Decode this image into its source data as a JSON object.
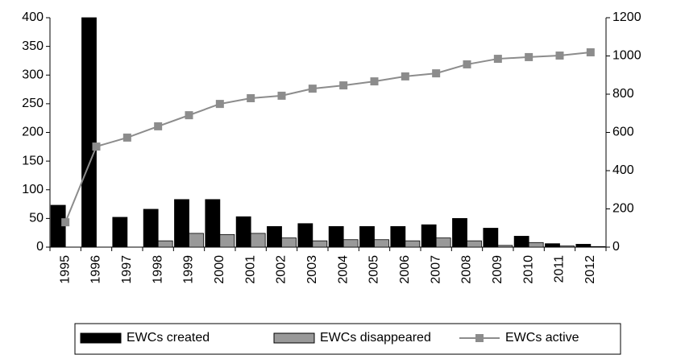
{
  "chart_data": {
    "type": "bar",
    "categories": [
      "1995",
      "1996",
      "1997",
      "1998",
      "1999",
      "2000",
      "2001",
      "2002",
      "2003",
      "2004",
      "2005",
      "2006",
      "2007",
      "2008",
      "2009",
      "2010",
      "2011",
      "2012"
    ],
    "series": [
      {
        "name": "EWCs created",
        "color": "#000000",
        "type": "bar",
        "values": [
          73,
          400,
          52,
          66,
          83,
          83,
          53,
          36,
          41,
          36,
          36,
          36,
          39,
          50,
          33,
          19,
          6,
          5
        ]
      },
      {
        "name": "EWCs disappeared",
        "color": "#999999",
        "type": "bar",
        "values": [
          0,
          0,
          0,
          11,
          24,
          22,
          24,
          16,
          11,
          13,
          13,
          11,
          16,
          11,
          3,
          8,
          2,
          1
        ]
      },
      {
        "name": "EWCs active",
        "color": "#8c8c8c",
        "type": "line",
        "axis": "y2",
        "values": [
          130,
          526,
          573,
          632,
          690,
          749,
          779,
          792,
          829,
          846,
          867,
          893,
          909,
          956,
          985,
          994,
          1002,
          1019
        ]
      }
    ],
    "ylim": [
      0,
      400
    ],
    "yticks": [
      0,
      50,
      100,
      150,
      200,
      250,
      300,
      350,
      400
    ],
    "y2lim": [
      0,
      1200
    ],
    "y2ticks": [
      0,
      200,
      400,
      600,
      800,
      1000,
      1200
    ],
    "legend": "bottom"
  }
}
